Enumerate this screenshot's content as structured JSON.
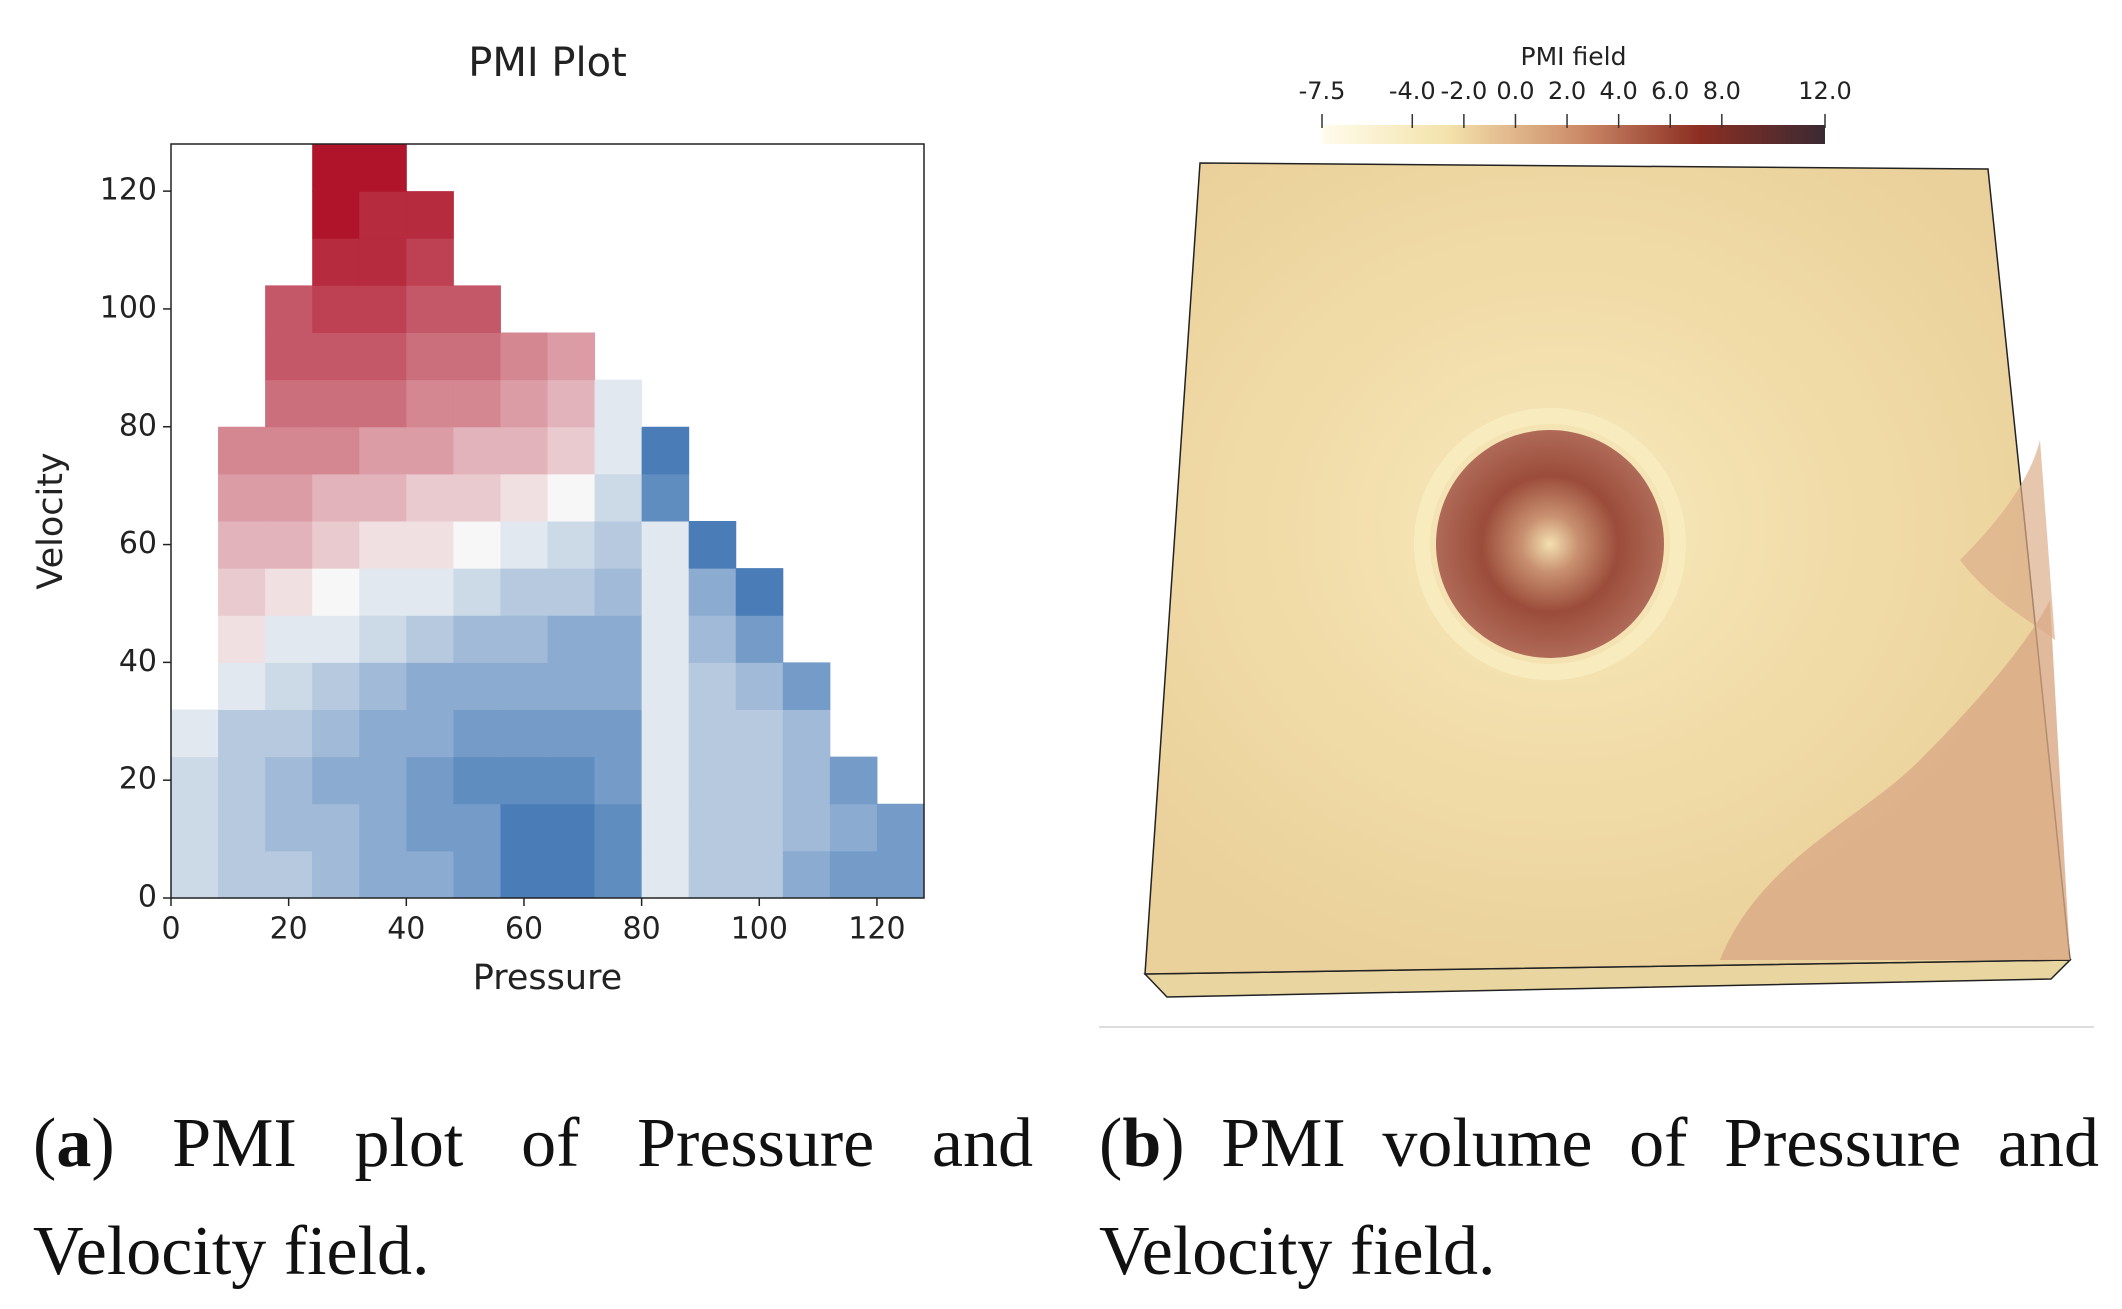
{
  "chart_data": [
    {
      "type": "heatmap",
      "title": "PMI Plot",
      "x_label": "Pressure",
      "y_label": "Velocity",
      "xlim": [
        0,
        128
      ],
      "ylim": [
        0,
        128
      ],
      "xticks": [
        0,
        20,
        40,
        60,
        80,
        100,
        120
      ],
      "yticks": [
        0,
        20,
        40,
        60,
        80,
        100,
        120
      ],
      "x_edges": [
        0,
        8,
        16,
        24,
        32,
        40,
        48,
        56,
        64,
        72,
        80,
        88,
        96,
        104,
        112,
        120,
        128
      ],
      "y_edges": [
        0,
        8,
        16,
        24,
        32,
        40,
        48,
        56,
        64,
        72,
        80,
        88,
        96,
        104,
        112,
        120,
        128
      ],
      "zlim": [
        -1,
        1
      ],
      "colors": [
        "#1f5fa8",
        "#f7f7f7",
        "#b0142a"
      ],
      "z": [
        [
          -0.2,
          -0.3,
          -0.3,
          -0.4,
          -0.5,
          -0.5,
          -0.6,
          -0.8,
          -0.8,
          -0.7,
          -0.1,
          -0.3,
          -0.3,
          -0.5,
          -0.6,
          -0.6
        ],
        [
          -0.2,
          -0.3,
          -0.4,
          -0.4,
          -0.5,
          -0.6,
          -0.6,
          -0.8,
          -0.8,
          -0.7,
          -0.1,
          -0.3,
          -0.3,
          -0.4,
          -0.5,
          -0.6
        ],
        [
          -0.2,
          -0.3,
          -0.4,
          -0.5,
          -0.5,
          -0.6,
          -0.7,
          -0.7,
          -0.7,
          -0.6,
          -0.1,
          -0.3,
          -0.3,
          -0.4,
          -0.6,
          null
        ],
        [
          -0.1,
          -0.3,
          -0.3,
          -0.4,
          -0.5,
          -0.5,
          -0.6,
          -0.6,
          -0.6,
          -0.6,
          -0.1,
          -0.3,
          -0.3,
          -0.4,
          null,
          null
        ],
        [
          null,
          -0.1,
          -0.2,
          -0.3,
          -0.4,
          -0.5,
          -0.5,
          -0.5,
          -0.5,
          -0.5,
          -0.1,
          -0.3,
          -0.4,
          -0.6,
          null,
          null
        ],
        [
          null,
          0.1,
          -0.1,
          -0.1,
          -0.2,
          -0.3,
          -0.4,
          -0.4,
          -0.5,
          -0.5,
          -0.1,
          -0.4,
          -0.6,
          null,
          null,
          null
        ],
        [
          null,
          0.2,
          0.1,
          0.0,
          -0.1,
          -0.1,
          -0.2,
          -0.3,
          -0.3,
          -0.4,
          -0.1,
          -0.5,
          -0.8,
          null,
          null,
          null
        ],
        [
          null,
          0.3,
          0.3,
          0.2,
          0.1,
          0.1,
          0.0,
          -0.1,
          -0.2,
          -0.3,
          -0.1,
          -0.8,
          null,
          null,
          null,
          null
        ],
        [
          null,
          0.4,
          0.4,
          0.3,
          0.3,
          0.2,
          0.2,
          0.1,
          0.0,
          -0.2,
          -0.7,
          null,
          null,
          null,
          null,
          null
        ],
        [
          null,
          0.5,
          0.5,
          0.5,
          0.4,
          0.4,
          0.3,
          0.3,
          0.2,
          -0.1,
          -0.8,
          null,
          null,
          null,
          null,
          null
        ],
        [
          null,
          null,
          0.6,
          0.6,
          0.6,
          0.5,
          0.5,
          0.4,
          0.3,
          -0.1,
          null,
          null,
          null,
          null,
          null,
          null
        ],
        [
          null,
          null,
          0.7,
          0.7,
          0.7,
          0.6,
          0.6,
          0.5,
          0.4,
          null,
          null,
          null,
          null,
          null,
          null,
          null
        ],
        [
          null,
          null,
          0.7,
          0.8,
          0.8,
          0.7,
          0.7,
          null,
          null,
          null,
          null,
          null,
          null,
          null,
          null,
          null
        ],
        [
          null,
          null,
          null,
          0.9,
          0.9,
          0.8,
          null,
          null,
          null,
          null,
          null,
          null,
          null,
          null,
          null,
          null
        ],
        [
          null,
          null,
          null,
          1.0,
          0.9,
          0.9,
          null,
          null,
          null,
          null,
          null,
          null,
          null,
          null,
          null,
          null
        ],
        [
          null,
          null,
          null,
          1.0,
          1.0,
          null,
          null,
          null,
          null,
          null,
          null,
          null,
          null,
          null,
          null,
          null
        ]
      ]
    },
    {
      "type": "volume",
      "colorbar_title": "PMI field",
      "colorbar_lim": [
        -7.5,
        12
      ],
      "colorbar_ticks": [
        -7.5,
        {
          "value": -4,
          "label": "-4.0"
        },
        {
          "value": -2,
          "label": "-2.0"
        },
        {
          "value": 0,
          "label": "0.0"
        },
        {
          "value": 2,
          "label": "2.0"
        },
        {
          "value": 4,
          "label": "4.0"
        },
        {
          "value": 6,
          "label": "6.0"
        },
        {
          "value": 8,
          "label": "8.0"
        },
        {
          "value": 12,
          "label": "12.0"
        }
      ],
      "colorbar_colors": [
        "#fffcec",
        "#f3e2ab",
        "#cf8f6c",
        "#8c2e22",
        "#3a2a33"
      ]
    }
  ],
  "captions": [
    {
      "parts": [
        "(",
        "a",
        ") PMI plot of Pressure and Velocity field."
      ]
    },
    {
      "parts": [
        "(",
        "b",
        ") PMI volume of Pressure and Velocity field."
      ]
    }
  ]
}
